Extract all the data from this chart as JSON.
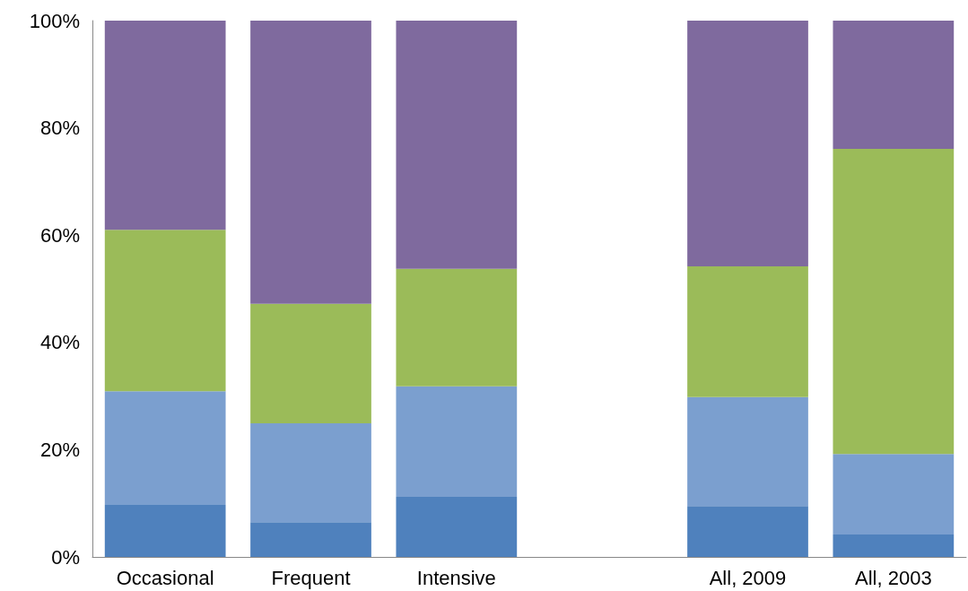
{
  "chart_data": {
    "type": "bar",
    "stacked": true,
    "categories": [
      "Occasional",
      "Frequent",
      "Intensive",
      null,
      "All, 2009",
      "All, 2003"
    ],
    "series": [
      {
        "color": "#4f81bd",
        "values": [
          9.7,
          6.5,
          11.2,
          null,
          9.5,
          4.2
        ]
      },
      {
        "color": "#7b9fcf",
        "values": [
          21.2,
          18.4,
          20.6,
          null,
          20.3,
          15.0
        ]
      },
      {
        "color": "#9bbb59",
        "values": [
          30.1,
          22.3,
          21.9,
          null,
          24.4,
          56.9
        ]
      },
      {
        "color": "#7f6a9e",
        "values": [
          39.0,
          52.8,
          46.3,
          null,
          45.8,
          23.9
        ]
      }
    ],
    "ylim": [
      0,
      100
    ],
    "yticks": [
      {
        "value": 0,
        "label": "0%"
      },
      {
        "value": 20,
        "label": "20%"
      },
      {
        "value": 40,
        "label": "40%"
      },
      {
        "value": 60,
        "label": "60%"
      },
      {
        "value": 80,
        "label": "80%"
      },
      {
        "value": 100,
        "label": "100%"
      }
    ]
  }
}
